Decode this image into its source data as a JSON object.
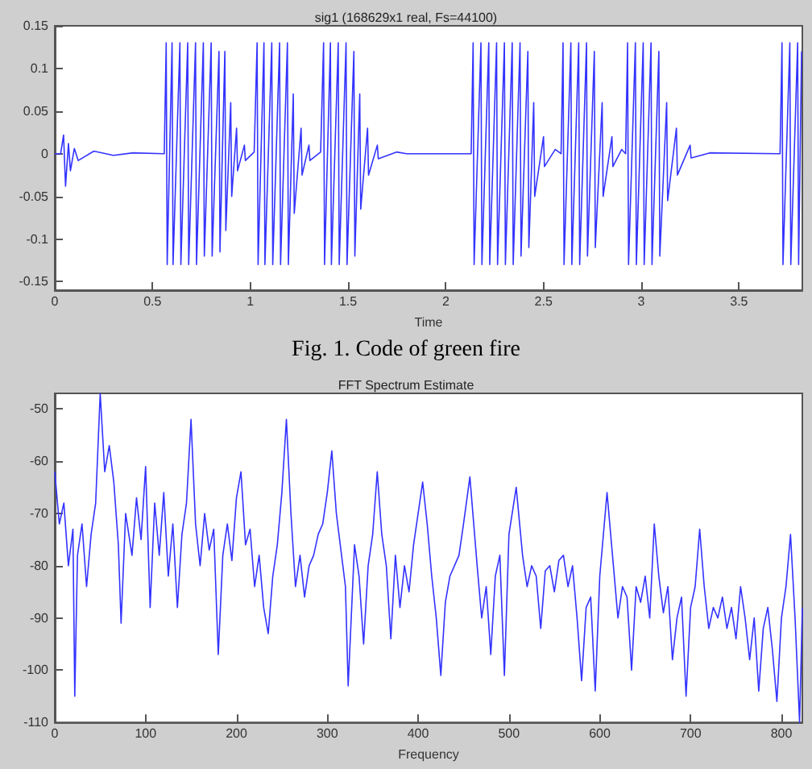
{
  "chart_data": [
    {
      "type": "line",
      "title": "sig1 (168629x1 real, Fs=44100)",
      "xlabel": "Time",
      "annotations": [
        "Fig. 1. Code of green fire"
      ],
      "xlim": [
        0,
        3.824
      ],
      "xticks": [
        0,
        0.5,
        1,
        1.5,
        2,
        2.5,
        3,
        3.5
      ],
      "ylim": [
        -0.16,
        0.15
      ],
      "yticks": [
        {
          "value": -0.15,
          "label": "-0.15"
        },
        {
          "value": -0.1,
          "label": "-0.1"
        },
        {
          "value": -0.05,
          "label": "-0.05"
        },
        0,
        {
          "value": 0.05,
          "label": "0.05"
        },
        {
          "value": 0.1,
          "label": "0.1"
        },
        {
          "value": 0.15,
          "label": "0.15"
        }
      ],
      "grid": false,
      "series": [
        {
          "color": "#3333ff",
          "x": [
            0,
            0.03,
            0.045,
            0.055,
            0.07,
            0.08,
            0.1,
            0.12,
            0.2,
            0.3,
            0.4,
            0.56,
            0.57,
            0.575,
            0.6,
            0.605,
            0.64,
            0.645,
            0.68,
            0.685,
            0.72,
            0.725,
            0.76,
            0.765,
            0.8,
            0.805,
            0.84,
            0.845,
            0.87,
            0.875,
            0.9,
            0.905,
            0.93,
            0.935,
            0.97,
            0.975,
            1.02,
            1.035,
            1.04,
            1.07,
            1.075,
            1.11,
            1.115,
            1.15,
            1.155,
            1.19,
            1.195,
            1.22,
            1.225,
            1.26,
            1.265,
            1.3,
            1.305,
            1.36,
            1.375,
            1.38,
            1.41,
            1.415,
            1.45,
            1.455,
            1.49,
            1.495,
            1.53,
            1.535,
            1.56,
            1.565,
            1.6,
            1.605,
            1.65,
            1.655,
            1.75,
            1.8,
            2.13,
            2.14,
            2.145,
            2.18,
            2.185,
            2.22,
            2.225,
            2.26,
            2.265,
            2.3,
            2.305,
            2.34,
            2.345,
            2.38,
            2.385,
            2.42,
            2.425,
            2.45,
            2.455,
            2.5,
            2.505,
            2.56,
            2.59,
            2.6,
            2.605,
            2.64,
            2.645,
            2.68,
            2.685,
            2.72,
            2.725,
            2.76,
            2.765,
            2.8,
            2.805,
            2.85,
            2.855,
            2.9,
            2.92,
            2.93,
            2.935,
            2.97,
            2.975,
            3.01,
            3.015,
            3.05,
            3.055,
            3.09,
            3.095,
            3.13,
            3.135,
            3.18,
            3.185,
            3.25,
            3.255,
            3.35,
            3.71,
            3.72,
            3.725,
            3.76,
            3.765,
            3.8,
            3.805,
            3.82
          ],
          "values": [
            0,
            0,
            0.022,
            -0.038,
            0.012,
            -0.02,
            0.006,
            -0.008,
            0.003,
            -0.002,
            0.001,
            0,
            0.13,
            -0.13,
            0.13,
            -0.13,
            0.13,
            -0.13,
            0.13,
            -0.13,
            0.13,
            -0.13,
            0.13,
            -0.12,
            0.13,
            -0.12,
            0.12,
            -0.115,
            0.12,
            -0.09,
            0.06,
            -0.05,
            0.03,
            -0.02,
            0.01,
            -0.008,
            0.002,
            0.13,
            -0.13,
            0.13,
            -0.13,
            0.13,
            -0.13,
            0.13,
            -0.13,
            0.13,
            -0.13,
            0.07,
            -0.07,
            0.03,
            -0.025,
            0.01,
            -0.008,
            0.002,
            0.13,
            -0.13,
            0.13,
            -0.13,
            0.13,
            -0.13,
            0.13,
            -0.13,
            0.12,
            -0.12,
            0.07,
            -0.065,
            0.03,
            -0.025,
            0.01,
            -0.006,
            0.002,
            0,
            0,
            0.13,
            -0.13,
            0.13,
            -0.13,
            0.13,
            -0.13,
            0.13,
            -0.13,
            0.13,
            -0.13,
            0.13,
            -0.13,
            0.13,
            -0.12,
            0.12,
            -0.11,
            0.06,
            -0.05,
            0.02,
            -0.015,
            0.005,
            0,
            0.13,
            -0.13,
            0.13,
            -0.13,
            0.13,
            -0.13,
            0.13,
            -0.12,
            0.12,
            -0.11,
            0.06,
            -0.05,
            0.02,
            -0.015,
            0.005,
            0,
            0.13,
            -0.13,
            0.13,
            -0.13,
            0.13,
            -0.13,
            0.13,
            -0.13,
            0.12,
            -0.12,
            0.06,
            -0.055,
            0.03,
            -0.025,
            0.01,
            -0.005,
            0.001,
            0,
            0.13,
            -0.13,
            0.13,
            -0.13,
            0.13,
            -0.13,
            0.12
          ]
        }
      ]
    },
    {
      "type": "line",
      "title": "FFT Spectrum Estimate",
      "xlabel": "Frequency",
      "xlim": [
        0,
        823
      ],
      "xticks": [
        0,
        100,
        200,
        300,
        400,
        500,
        600,
        700,
        800
      ],
      "ylim": [
        -110,
        -47
      ],
      "yticks": [
        -110,
        -100,
        -90,
        -80,
        -70,
        -60,
        -50
      ],
      "grid": false,
      "series": [
        {
          "color": "#3333ff",
          "x": [
            0,
            5,
            10,
            15,
            20,
            22,
            25,
            30,
            35,
            40,
            45,
            50,
            55,
            60,
            65,
            70,
            73,
            78,
            85,
            90,
            95,
            100,
            105,
            110,
            115,
            120,
            125,
            130,
            135,
            140,
            145,
            150,
            155,
            160,
            165,
            170,
            175,
            180,
            185,
            190,
            195,
            200,
            205,
            210,
            215,
            220,
            225,
            230,
            235,
            240,
            245,
            250,
            255,
            260,
            265,
            270,
            275,
            280,
            285,
            290,
            295,
            300,
            305,
            310,
            315,
            320,
            323,
            330,
            335,
            340,
            345,
            350,
            355,
            360,
            365,
            370,
            375,
            380,
            385,
            390,
            395,
            400,
            405,
            410,
            415,
            420,
            425,
            430,
            435,
            440,
            445,
            450,
            457,
            465,
            470,
            475,
            480,
            485,
            490,
            495,
            500,
            508,
            515,
            520,
            525,
            530,
            535,
            540,
            545,
            550,
            555,
            560,
            565,
            570,
            575,
            580,
            585,
            590,
            595,
            600,
            608,
            615,
            620,
            625,
            630,
            635,
            640,
            645,
            650,
            655,
            660,
            665,
            670,
            675,
            680,
            685,
            690,
            695,
            700,
            705,
            710,
            715,
            720,
            725,
            730,
            735,
            740,
            745,
            750,
            755,
            760,
            765,
            770,
            775,
            780,
            785,
            790,
            795,
            800,
            805,
            810,
            815,
            820,
            823
          ],
          "values": [
            -62,
            -72,
            -68,
            -80,
            -73,
            -105,
            -78,
            -72,
            -84,
            -74,
            -68,
            -47,
            -62,
            -57,
            -64,
            -76,
            -91,
            -70,
            -78,
            -67,
            -75,
            -61,
            -88,
            -68,
            -78,
            -66,
            -82,
            -72,
            -88,
            -74,
            -68,
            -52,
            -72,
            -80,
            -70,
            -77,
            -73,
            -97,
            -78,
            -72,
            -79,
            -67,
            -62,
            -76,
            -73,
            -84,
            -78,
            -88,
            -93,
            -82,
            -76,
            -66,
            -52,
            -70,
            -84,
            -78,
            -86,
            -80,
            -78,
            -74,
            -72,
            -66,
            -58,
            -70,
            -77,
            -84,
            -103,
            -76,
            -82,
            -95,
            -80,
            -74,
            -62,
            -74,
            -80,
            -94,
            -78,
            -88,
            -80,
            -85,
            -76,
            -70,
            -64,
            -72,
            -82,
            -90,
            -101,
            -87,
            -82,
            -80,
            -78,
            -72,
            -63,
            -80,
            -90,
            -84,
            -97,
            -82,
            -78,
            -101,
            -74,
            -65,
            -78,
            -84,
            -80,
            -82,
            -92,
            -81,
            -80,
            -85,
            -79,
            -78,
            -84,
            -80,
            -90,
            -102,
            -88,
            -86,
            -104,
            -82,
            -66,
            -80,
            -90,
            -84,
            -86,
            -100,
            -84,
            -87,
            -82,
            -90,
            -72,
            -82,
            -89,
            -84,
            -98,
            -90,
            -86,
            -105,
            -88,
            -84,
            -73,
            -84,
            -92,
            -88,
            -90,
            -86,
            -92,
            -88,
            -94,
            -84,
            -90,
            -98,
            -90,
            -104,
            -92,
            -88,
            -96,
            -106,
            -90,
            -84,
            -74,
            -90,
            -110,
            -88
          ]
        }
      ]
    }
  ]
}
